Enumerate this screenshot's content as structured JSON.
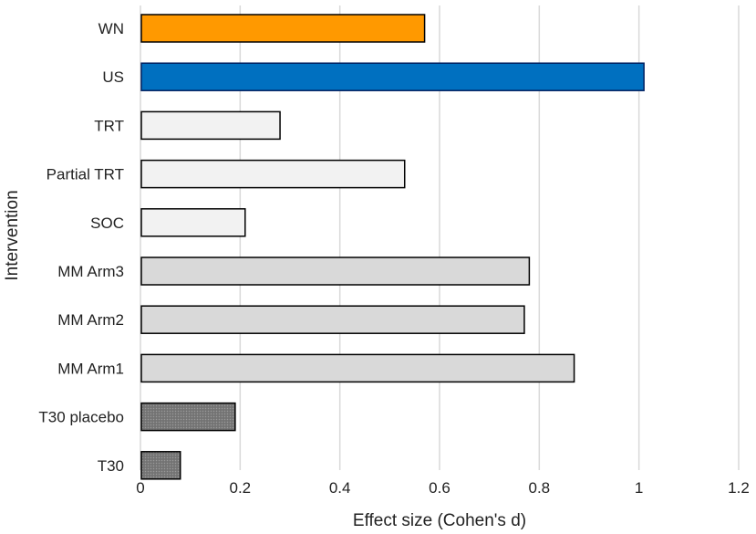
{
  "chart_data": {
    "type": "bar",
    "orientation": "horizontal",
    "title": "",
    "xlabel": "Effect size (Cohen's d)",
    "ylabel": "Intervention",
    "xlim": [
      0,
      1.2
    ],
    "xticks": [
      "0",
      "0.2",
      "0.4",
      "0.6",
      "0.8",
      "1",
      "1.2"
    ],
    "xtick_values": [
      0,
      0.2,
      0.4,
      0.6,
      0.8,
      1.0,
      1.2
    ],
    "grid": "vertical",
    "categories": [
      "WN",
      "US",
      "TRT",
      "Partial TRT",
      "SOC",
      "MM Arm3",
      "MM Arm2",
      "MM Arm1",
      "T30 placebo",
      "T30"
    ],
    "values": [
      0.57,
      1.01,
      0.28,
      0.53,
      0.21,
      0.78,
      0.77,
      0.87,
      0.19,
      0.08
    ],
    "colors": [
      "#FF9900",
      "#0070C0",
      "#F2F2F2",
      "#F2F2F2",
      "#F2F2F2",
      "#D9D9D9",
      "#D9D9D9",
      "#D9D9D9",
      "#808080",
      "#808080"
    ],
    "patterned": [
      false,
      false,
      false,
      false,
      false,
      false,
      false,
      false,
      true,
      true
    ],
    "edge_colors": [
      "#000000",
      "#002060",
      "#000000",
      "#000000",
      "#000000",
      "#000000",
      "#000000",
      "#000000",
      "#000000",
      "#000000"
    ]
  }
}
